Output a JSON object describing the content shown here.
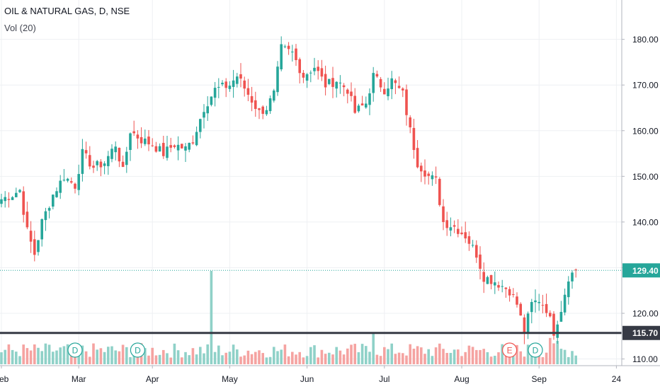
{
  "legend": {
    "symbol": "OIL & NATURAL GAS, D, NSE",
    "volume": "Vol (20)"
  },
  "colors": {
    "up": "#26a69a",
    "down": "#ef5350",
    "up_volume": "#8fd1c8",
    "down_volume": "#f5a3a1",
    "last_price_line": "#26a69a",
    "support_line": "#363a45",
    "grid": "#eef0f3",
    "axis_text": "#131722"
  },
  "chart_data": {
    "type": "candlestick",
    "x_tick_labels": [
      "Feb",
      "Mar",
      "Apr",
      "May",
      "Jun",
      "Jul",
      "Aug",
      "Sep",
      "24"
    ],
    "y_ticks": [
      180,
      170,
      160,
      150,
      140,
      130,
      120,
      110
    ],
    "y_tick_labels": [
      "180.00",
      "170.00",
      "160.00",
      "150.00",
      "140.00",
      "130.00",
      "120.00",
      "110.00"
    ],
    "ylim": [
      109,
      188
    ],
    "last_price": {
      "value": 129.4,
      "label": "129.40"
    },
    "horizontal_line": {
      "value": 115.7,
      "label": "115.70"
    },
    "event_markers": [
      {
        "label": "D",
        "index": 20,
        "type": "dividend"
      },
      {
        "label": "D",
        "index": 37,
        "type": "dividend"
      },
      {
        "label": "E",
        "index": 138,
        "type": "earnings"
      },
      {
        "label": "D",
        "index": 145,
        "type": "dividend"
      }
    ],
    "anchors": [
      [
        0,
        145
      ],
      [
        3,
        146
      ],
      [
        5,
        147
      ],
      [
        7,
        138
      ],
      [
        9,
        133
      ],
      [
        11,
        140
      ],
      [
        14,
        146
      ],
      [
        17,
        150
      ],
      [
        20,
        148
      ],
      [
        22,
        155
      ],
      [
        25,
        152
      ],
      [
        28,
        153
      ],
      [
        31,
        157
      ],
      [
        33,
        151
      ],
      [
        35,
        160
      ],
      [
        38,
        158
      ],
      [
        41,
        157
      ],
      [
        44,
        155
      ],
      [
        47,
        157
      ],
      [
        50,
        156
      ],
      [
        52,
        158
      ],
      [
        55,
        165
      ],
      [
        58,
        169
      ],
      [
        62,
        170
      ],
      [
        64,
        172
      ],
      [
        67,
        168
      ],
      [
        70,
        164
      ],
      [
        72,
        165
      ],
      [
        74,
        168
      ],
      [
        76,
        178
      ],
      [
        79,
        177
      ],
      [
        82,
        172
      ],
      [
        85,
        174
      ],
      [
        88,
        170
      ],
      [
        91,
        171
      ],
      [
        94,
        169
      ],
      [
        96,
        164
      ],
      [
        99,
        166
      ],
      [
        101,
        172
      ],
      [
        104,
        169
      ],
      [
        106,
        171
      ],
      [
        109,
        168
      ],
      [
        111,
        160
      ],
      [
        113,
        153
      ],
      [
        116,
        150
      ],
      [
        118,
        149
      ],
      [
        120,
        140
      ],
      [
        123,
        139
      ],
      [
        126,
        137
      ],
      [
        129,
        133
      ],
      [
        131,
        128
      ],
      [
        134,
        127
      ],
      [
        136,
        126
      ],
      [
        138,
        125
      ],
      [
        140,
        122
      ],
      [
        142,
        116
      ],
      [
        144,
        122
      ],
      [
        146,
        123
      ],
      [
        148,
        121
      ],
      [
        150,
        116
      ],
      [
        152,
        121
      ],
      [
        154,
        128
      ],
      [
        156,
        129.4
      ]
    ],
    "volume_spikes": [
      {
        "index": 20,
        "relative": 0.42
      },
      {
        "index": 57,
        "relative": 2.2
      },
      {
        "index": 101,
        "relative": 0.75
      },
      {
        "index": 149,
        "relative": 0.62
      },
      {
        "index": 151,
        "relative": 0.55
      }
    ]
  }
}
